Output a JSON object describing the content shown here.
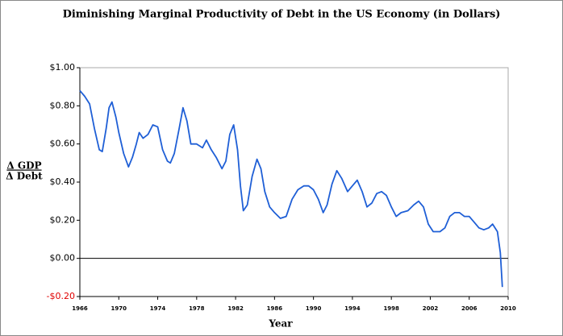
{
  "chart_data": {
    "type": "line",
    "title": "Diminishing Marginal Productivity of Debt in the US Economy  (in Dollars)",
    "x_label": "Year",
    "y_label_numerator": "Δ GDP",
    "y_label_denominator": "Δ Debt",
    "xlim": [
      1966,
      2010
    ],
    "xticks": [
      1966,
      1970,
      1974,
      1978,
      1982,
      1986,
      1990,
      1994,
      1998,
      2002,
      2006,
      2010
    ],
    "ylim": [
      -0.2,
      1.0
    ],
    "yticks": [
      {
        "value": -0.2,
        "label": "-$0.20"
      },
      {
        "value": 0,
        "label": "$0.00"
      },
      {
        "value": 0.2,
        "label": "$0.20"
      },
      {
        "value": 0.4,
        "label": "$0.40"
      },
      {
        "value": 0.6,
        "label": "$0.60"
      },
      {
        "value": 0.8,
        "label": "$0.80"
      },
      {
        "value": 1.0,
        "label": "$1.00"
      }
    ],
    "negative_tick_color": "#e00000",
    "zero_line": true,
    "series": [
      {
        "color": "#1f5fd6",
        "x": [
          1966.0,
          1966.5,
          1967,
          1967.5,
          1968,
          1968.3,
          1968.7,
          1969,
          1969.3,
          1969.7,
          1970,
          1970.5,
          1971,
          1971.4,
          1971.8,
          1972.1,
          1972.5,
          1973,
          1973.5,
          1974,
          1974.5,
          1975,
          1975.3,
          1975.7,
          1976.2,
          1976.6,
          1977,
          1977.4,
          1978,
          1978.6,
          1979,
          1979.5,
          1980,
          1980.6,
          1981,
          1981.4,
          1981.8,
          1982.2,
          1982.5,
          1982.8,
          1983.2,
          1983.7,
          1984.2,
          1984.6,
          1985,
          1985.5,
          1986,
          1986.6,
          1987.2,
          1987.8,
          1988.4,
          1989,
          1989.5,
          1990,
          1990.5,
          1991,
          1991.4,
          1991.9,
          1992.4,
          1992.9,
          1993.5,
          1994,
          1994.5,
          1995,
          1995.5,
          1996,
          1996.5,
          1997,
          1997.5,
          1998,
          1998.5,
          1999,
          1999.7,
          2000.3,
          2000.8,
          2001.3,
          2001.8,
          2002.3,
          2003,
          2003.5,
          2004,
          2004.5,
          2005,
          2005.5,
          2006,
          2006.5,
          2007,
          2007.5,
          2008,
          2008.4,
          2008.9,
          2009.2,
          2009.4
        ],
        "values": [
          0.88,
          0.85,
          0.81,
          0.68,
          0.57,
          0.56,
          0.68,
          0.79,
          0.82,
          0.74,
          0.66,
          0.55,
          0.48,
          0.53,
          0.6,
          0.66,
          0.63,
          0.65,
          0.7,
          0.69,
          0.57,
          0.51,
          0.5,
          0.55,
          0.68,
          0.79,
          0.72,
          0.6,
          0.6,
          0.58,
          0.62,
          0.57,
          0.53,
          0.47,
          0.51,
          0.65,
          0.7,
          0.57,
          0.38,
          0.25,
          0.28,
          0.43,
          0.52,
          0.47,
          0.35,
          0.27,
          0.24,
          0.21,
          0.22,
          0.31,
          0.36,
          0.38,
          0.38,
          0.36,
          0.31,
          0.24,
          0.28,
          0.39,
          0.46,
          0.42,
          0.35,
          0.38,
          0.41,
          0.35,
          0.27,
          0.29,
          0.34,
          0.35,
          0.33,
          0.27,
          0.22,
          0.24,
          0.25,
          0.28,
          0.3,
          0.27,
          0.18,
          0.14,
          0.14,
          0.16,
          0.22,
          0.24,
          0.24,
          0.22,
          0.22,
          0.19,
          0.16,
          0.15,
          0.16,
          0.18,
          0.14,
          0.03,
          -0.15
        ]
      }
    ]
  }
}
